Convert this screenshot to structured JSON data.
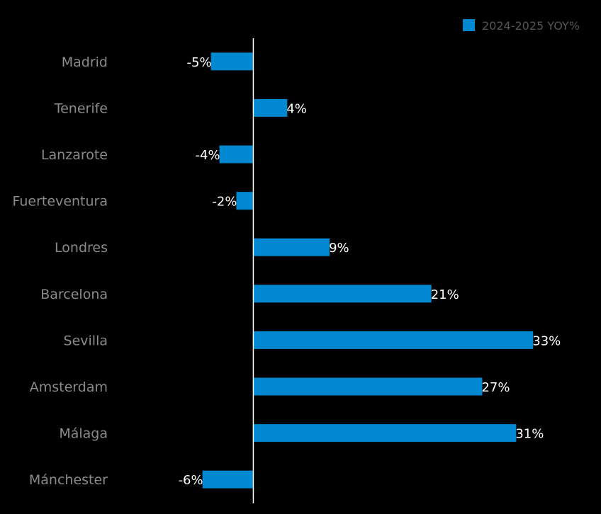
{
  "chart_data": {
    "type": "bar",
    "orientation": "horizontal",
    "categories": [
      "Madrid",
      "Tenerife",
      "Lanzarote",
      "Fuerteventura",
      "Londres",
      "Barcelona",
      "Sevilla",
      "Amsterdam",
      "Málaga",
      "Mánchester"
    ],
    "series": [
      {
        "name": "2024-2025 YOY%",
        "values": [
          -5,
          4,
          -4,
          -2,
          9,
          21,
          33,
          27,
          31,
          -6
        ],
        "labels": [
          "-5%",
          "4%",
          "-4%",
          "-2%",
          "9%",
          "21%",
          "33%",
          "27%",
          "31%",
          "-6%"
        ]
      }
    ],
    "xlim": [
      -16.5,
      41
    ],
    "grid": false,
    "legend_position": "top-right",
    "colors": {
      "background": "#000000",
      "bar": "#0088d1",
      "axis": "#ffffff",
      "category_text": "#8a8a8a",
      "legend_text": "#555555",
      "value_text": "#ffffff"
    }
  }
}
